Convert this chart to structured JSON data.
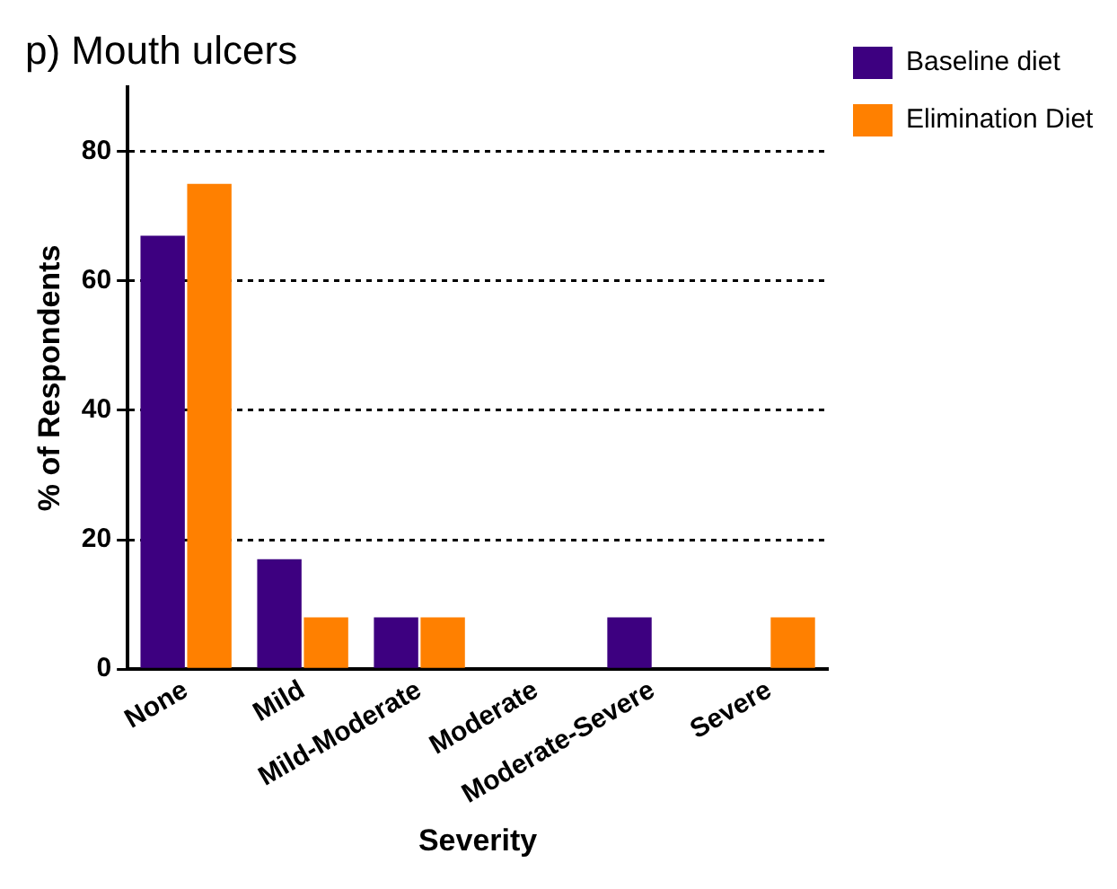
{
  "chart_data": {
    "type": "bar",
    "title": "p) Mouth ulcers",
    "xlabel": "Severity",
    "ylabel": "% of Respondents",
    "categories": [
      "None",
      "Mild",
      "Mild-Moderate",
      "Moderate",
      "Moderate-Severe",
      "Severe"
    ],
    "series": [
      {
        "name": "Baseline diet",
        "color": "#3d0080",
        "values": [
          67,
          17,
          8,
          0,
          8,
          0
        ]
      },
      {
        "name": "Elimination Diet",
        "color": "#ff8000",
        "values": [
          75,
          8,
          8,
          0,
          0,
          8
        ]
      }
    ],
    "ylim": [
      0,
      90
    ],
    "yticks": [
      0,
      20,
      40,
      60,
      80
    ],
    "grid": "y",
    "legend": "top right"
  }
}
